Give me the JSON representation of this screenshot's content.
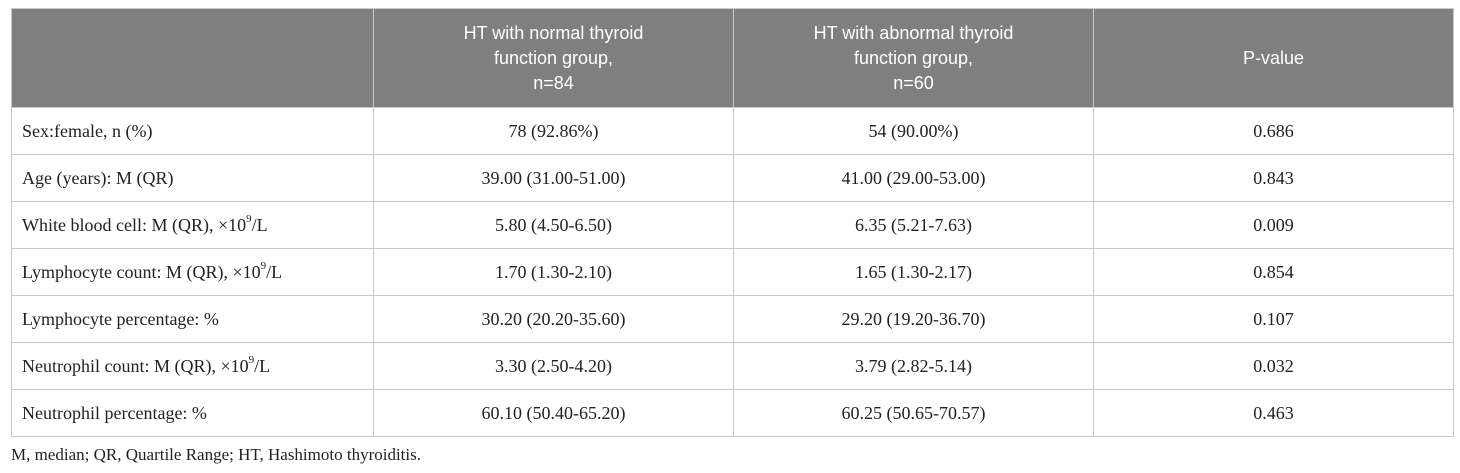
{
  "table": {
    "headers": [
      "",
      "HT with normal thyroid function group, n=84",
      "HT with abnormal thyroid function group, n=60",
      "P-value"
    ],
    "header_lines": {
      "col2": [
        "HT with normal thyroid",
        "function group,",
        "n=84"
      ],
      "col3": [
        "HT with abnormal thyroid",
        "function group,",
        "n=60"
      ],
      "col4": [
        "P-value"
      ]
    },
    "rows": [
      {
        "label": "Sex:female, n (%)",
        "label_suffix": "",
        "normal": "78 (92.86%)",
        "abnormal": "54 (90.00%)",
        "p": "0.686"
      },
      {
        "label": "Age (years): M (QR)",
        "label_suffix": "",
        "normal": "39.00 (31.00-51.00)",
        "abnormal": "41.00 (29.00-53.00)",
        "p": "0.843"
      },
      {
        "label": "White blood cell: M (QR), ×10",
        "sup": "9",
        "label_suffix": "/L",
        "normal": "5.80 (4.50-6.50)",
        "abnormal": "6.35 (5.21-7.63)",
        "p": "0.009"
      },
      {
        "label": "Lymphocyte count: M (QR), ×10",
        "sup": "9",
        "label_suffix": "/L",
        "normal": "1.70 (1.30-2.10)",
        "abnormal": "1.65 (1.30-2.17)",
        "p": "0.854"
      },
      {
        "label": "Lymphocyte percentage: %",
        "label_suffix": "",
        "normal": "30.20 (20.20-35.60)",
        "abnormal": "29.20 (19.20-36.70)",
        "p": "0.107"
      },
      {
        "label": "Neutrophil count: M (QR), ×10",
        "sup": "9",
        "label_suffix": "/L",
        "normal": "3.30 (2.50-4.20)",
        "abnormal": "3.79 (2.82-5.14)",
        "p": "0.032"
      },
      {
        "label": "Neutrophil percentage: %",
        "label_suffix": "",
        "normal": "60.10 (50.40-65.20)",
        "abnormal": "60.25 (50.65-70.57)",
        "p": "0.463"
      }
    ]
  },
  "footnote": "M, median; QR, Quartile Range; HT, Hashimoto thyroiditis.",
  "colors": {
    "header_bg": "#7f7f7f",
    "header_text": "#ffffff",
    "border": "#c8c8c8",
    "body_text": "#222222"
  }
}
